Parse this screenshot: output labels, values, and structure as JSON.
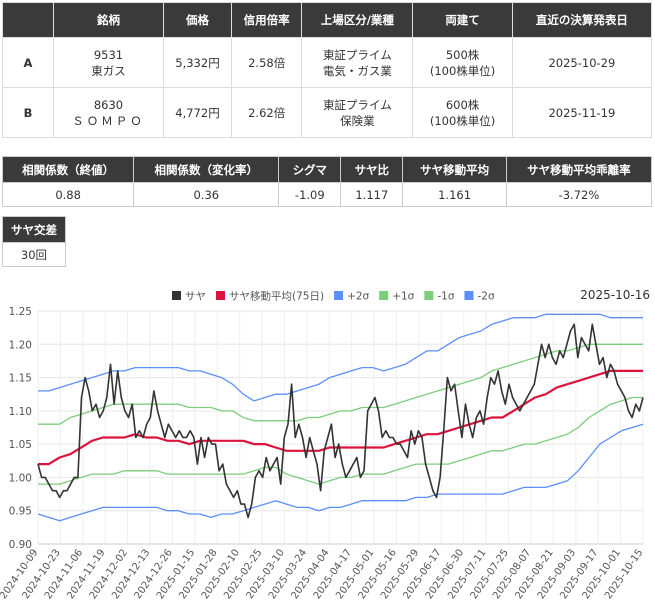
{
  "pair_table": {
    "headers": [
      "",
      "銘柄",
      "価格",
      "信用倍率",
      "上場区分/業種",
      "両建て",
      "直近の決算発表日"
    ],
    "rows": [
      {
        "id": "A",
        "code": "9531",
        "name": "東ガス",
        "price": "5,332円",
        "margin": "2.58倍",
        "market": "東証プライム",
        "sector": "電気・ガス業",
        "hedge": "500株",
        "unit": "(100株単位)",
        "date": "2025-10-29"
      },
      {
        "id": "B",
        "code": "8630",
        "name": "ＳＯＭＰＯ",
        "price": "4,772円",
        "margin": "2.62倍",
        "market": "東証プライム",
        "sector": "保険業",
        "hedge": "600株",
        "unit": "(100株単位)",
        "date": "2025-11-19"
      }
    ]
  },
  "stats": [
    {
      "label": "相関係数（終値）",
      "value": "0.88"
    },
    {
      "label": "相関係数（変化率）",
      "value": "0.36"
    },
    {
      "label": "シグマ",
      "value": "-1.09"
    },
    {
      "label": "サヤ比",
      "value": "1.117"
    },
    {
      "label": "サヤ移動平均",
      "value": "1.161"
    },
    {
      "label": "サヤ移動平均乖離率",
      "value": "-3.72%"
    }
  ],
  "stats2": [
    {
      "label": "サヤ交差",
      "value": "30回"
    }
  ],
  "chart_data": {
    "type": "line",
    "date_label": "2025-10-16",
    "ylim": [
      0.9,
      1.25
    ],
    "yticks": [
      "0.90",
      "0.95",
      "1.00",
      "1.05",
      "1.10",
      "1.15",
      "1.20",
      "1.25"
    ],
    "x_tick_labels": [
      "2024-10-09",
      "2024-10-23",
      "2024-11-06",
      "2024-11-19",
      "2024-12-02",
      "2024-12-13",
      "2024-12-26",
      "2025-01-15",
      "2025-01-28",
      "2025-02-10",
      "2025-02-25",
      "2025-03-10",
      "2025-03-24",
      "2025-04-04",
      "2025-04-17",
      "2025-05-01",
      "2025-05-16",
      "2025-05-29",
      "2025-06-17",
      "2025-06-30",
      "2025-07-11",
      "2025-07-25",
      "2025-08-07",
      "2025-08-21",
      "2025-09-03",
      "2025-09-17",
      "2025-10-01",
      "2025-10-15"
    ],
    "colors": {
      "saya": "#333333",
      "ma": "#dc143c",
      "p2": "#5b8ff9",
      "p1": "#7ccd7c",
      "m1": "#7ccd7c",
      "m2": "#5b8ff9"
    },
    "series": [
      {
        "key": "saya",
        "name": "サヤ",
        "values": [
          1.02,
          1.0,
          1.0,
          0.99,
          0.98,
          0.98,
          0.97,
          0.98,
          0.98,
          0.99,
          1.0,
          1.0,
          1.12,
          1.15,
          1.13,
          1.1,
          1.11,
          1.09,
          1.1,
          1.12,
          1.17,
          1.11,
          1.16,
          1.12,
          1.1,
          1.09,
          1.11,
          1.06,
          1.07,
          1.06,
          1.08,
          1.09,
          1.13,
          1.1,
          1.08,
          1.06,
          1.08,
          1.07,
          1.06,
          1.07,
          1.06,
          1.06,
          1.07,
          1.06,
          1.02,
          1.06,
          1.03,
          1.06,
          1.05,
          1.05,
          1.01,
          1.02,
          0.99,
          0.98,
          0.97,
          0.98,
          0.96,
          0.96,
          0.94,
          0.96,
          1.0,
          1.01,
          1.0,
          1.03,
          1.01,
          1.02,
          1.03,
          0.99,
          1.06,
          1.08,
          1.14,
          1.06,
          1.08,
          1.06,
          1.03,
          1.06,
          1.04,
          1.02,
          0.98,
          1.04,
          1.06,
          1.08,
          1.03,
          1.05,
          1.02,
          1.0,
          1.01,
          1.02,
          1.03,
          1.0,
          1.01,
          1.1,
          1.11,
          1.12,
          1.1,
          1.06,
          1.07,
          1.06,
          1.06,
          1.05,
          1.05,
          1.04,
          1.03,
          1.07,
          1.05,
          1.07,
          1.06,
          1.02,
          1.0,
          0.98,
          0.97,
          1.0,
          1.07,
          1.15,
          1.13,
          1.14,
          1.1,
          1.06,
          1.11,
          1.08,
          1.06,
          1.09,
          1.1,
          1.08,
          1.12,
          1.15,
          1.14,
          1.16,
          1.13,
          1.11,
          1.14,
          1.12,
          1.11,
          1.1,
          1.11,
          1.12,
          1.13,
          1.14,
          1.17,
          1.2,
          1.18,
          1.2,
          1.18,
          1.17,
          1.19,
          1.18,
          1.2,
          1.22,
          1.23,
          1.18,
          1.21,
          1.2,
          1.19,
          1.23,
          1.2,
          1.17,
          1.18,
          1.15,
          1.17,
          1.16,
          1.14,
          1.13,
          1.12,
          1.1,
          1.09,
          1.11,
          1.1,
          1.12
        ]
      },
      {
        "key": "ma",
        "name": "サヤ移動平均(75日)",
        "values": [
          1.02,
          1.02,
          1.03,
          1.035,
          1.045,
          1.055,
          1.06,
          1.06,
          1.06,
          1.065,
          1.06,
          1.06,
          1.055,
          1.055,
          1.05,
          1.055,
          1.055,
          1.055,
          1.055,
          1.055,
          1.05,
          1.05,
          1.045,
          1.04,
          1.04,
          1.04,
          1.04,
          1.045,
          1.045,
          1.045,
          1.045,
          1.045,
          1.045,
          1.05,
          1.055,
          1.06,
          1.065,
          1.065,
          1.07,
          1.075,
          1.08,
          1.085,
          1.09,
          1.09,
          1.1,
          1.11,
          1.12,
          1.125,
          1.135,
          1.14,
          1.145,
          1.15,
          1.155,
          1.16,
          1.16,
          1.16,
          1.16
        ]
      },
      {
        "key": "p2",
        "name": "+2σ",
        "values": [
          1.13,
          1.13,
          1.135,
          1.14,
          1.145,
          1.15,
          1.155,
          1.16,
          1.16,
          1.165,
          1.165,
          1.165,
          1.165,
          1.165,
          1.16,
          1.16,
          1.155,
          1.15,
          1.14,
          1.125,
          1.115,
          1.12,
          1.125,
          1.125,
          1.13,
          1.135,
          1.14,
          1.15,
          1.155,
          1.16,
          1.165,
          1.165,
          1.16,
          1.165,
          1.17,
          1.18,
          1.19,
          1.19,
          1.2,
          1.21,
          1.215,
          1.22,
          1.23,
          1.235,
          1.24,
          1.24,
          1.24,
          1.245,
          1.245,
          1.245,
          1.245,
          1.245,
          1.245,
          1.24,
          1.24,
          1.24,
          1.24
        ]
      },
      {
        "key": "p1",
        "name": "+1σ",
        "values": [
          1.08,
          1.08,
          1.08,
          1.09,
          1.095,
          1.1,
          1.105,
          1.11,
          1.11,
          1.11,
          1.11,
          1.11,
          1.11,
          1.11,
          1.105,
          1.105,
          1.105,
          1.1,
          1.1,
          1.09,
          1.085,
          1.085,
          1.085,
          1.085,
          1.085,
          1.09,
          1.09,
          1.095,
          1.1,
          1.1,
          1.105,
          1.105,
          1.105,
          1.11,
          1.115,
          1.12,
          1.125,
          1.13,
          1.135,
          1.14,
          1.145,
          1.15,
          1.16,
          1.165,
          1.17,
          1.175,
          1.18,
          1.185,
          1.19,
          1.19,
          1.195,
          1.2,
          1.2,
          1.2,
          1.2,
          1.2,
          1.2
        ]
      },
      {
        "key": "m1",
        "name": "-1σ",
        "values": [
          0.99,
          0.99,
          0.99,
          0.995,
          1.0,
          1.005,
          1.005,
          1.005,
          1.01,
          1.01,
          1.01,
          1.01,
          1.005,
          1.005,
          1.005,
          1.005,
          1.005,
          1.005,
          1.005,
          1.005,
          1.01,
          1.015,
          1.015,
          1.005,
          1.0,
          0.995,
          0.99,
          0.995,
          1.0,
          1.0,
          1.005,
          1.005,
          1.005,
          1.01,
          1.015,
          1.02,
          1.02,
          1.02,
          1.02,
          1.025,
          1.03,
          1.035,
          1.04,
          1.04,
          1.045,
          1.05,
          1.05,
          1.055,
          1.06,
          1.065,
          1.075,
          1.09,
          1.1,
          1.11,
          1.115,
          1.12,
          1.12
        ]
      },
      {
        "key": "m2",
        "name": "-2σ",
        "values": [
          0.945,
          0.94,
          0.935,
          0.94,
          0.945,
          0.95,
          0.955,
          0.955,
          0.955,
          0.955,
          0.955,
          0.955,
          0.95,
          0.95,
          0.945,
          0.945,
          0.94,
          0.945,
          0.945,
          0.95,
          0.955,
          0.96,
          0.965,
          0.96,
          0.955,
          0.955,
          0.95,
          0.955,
          0.955,
          0.96,
          0.965,
          0.965,
          0.965,
          0.965,
          0.965,
          0.97,
          0.97,
          0.975,
          0.975,
          0.975,
          0.975,
          0.975,
          0.975,
          0.975,
          0.98,
          0.985,
          0.985,
          0.985,
          0.99,
          0.995,
          1.01,
          1.03,
          1.05,
          1.06,
          1.07,
          1.075,
          1.08
        ]
      }
    ]
  }
}
